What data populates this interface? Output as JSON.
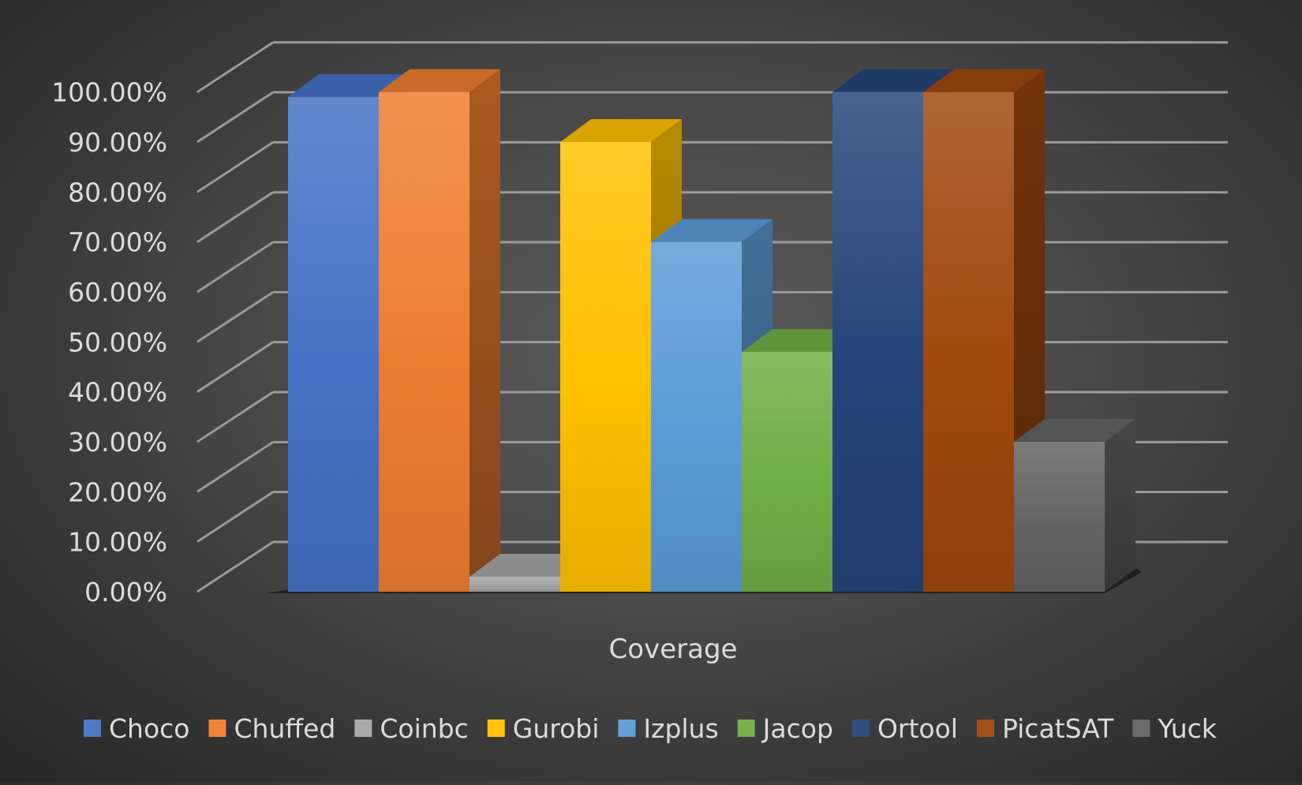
{
  "chart_data": {
    "type": "bar",
    "style": "3d-clustered-column",
    "categories": [
      "Coverage"
    ],
    "xlabel": "Coverage",
    "ylabel": "",
    "title": "",
    "ylim": [
      0,
      100
    ],
    "ytick_step": 10,
    "ytick_labels": [
      "0.00%",
      "10.00%",
      "20.00%",
      "30.00%",
      "40.00%",
      "50.00%",
      "60.00%",
      "70.00%",
      "80.00%",
      "90.00%",
      "100.00%"
    ],
    "grid": true,
    "legend": "bottom",
    "series": [
      {
        "name": "Choco",
        "values": [
          99
        ],
        "color": "#4472c4"
      },
      {
        "name": "Chuffed",
        "values": [
          100
        ],
        "color": "#ed7d31"
      },
      {
        "name": "Coinbc",
        "values": [
          3
        ],
        "color": "#a5a5a5"
      },
      {
        "name": "Gurobi",
        "values": [
          90
        ],
        "color": "#ffc000"
      },
      {
        "name": "Izplus",
        "values": [
          70
        ],
        "color": "#5b9bd5"
      },
      {
        "name": "Jacop",
        "values": [
          48
        ],
        "color": "#70ad47"
      },
      {
        "name": "Ortool",
        "values": [
          100
        ],
        "color": "#264478"
      },
      {
        "name": "PicatSAT",
        "values": [
          100
        ],
        "color": "#9e480e"
      },
      {
        "name": "Yuck",
        "values": [
          30
        ],
        "color": "#636363"
      }
    ]
  }
}
